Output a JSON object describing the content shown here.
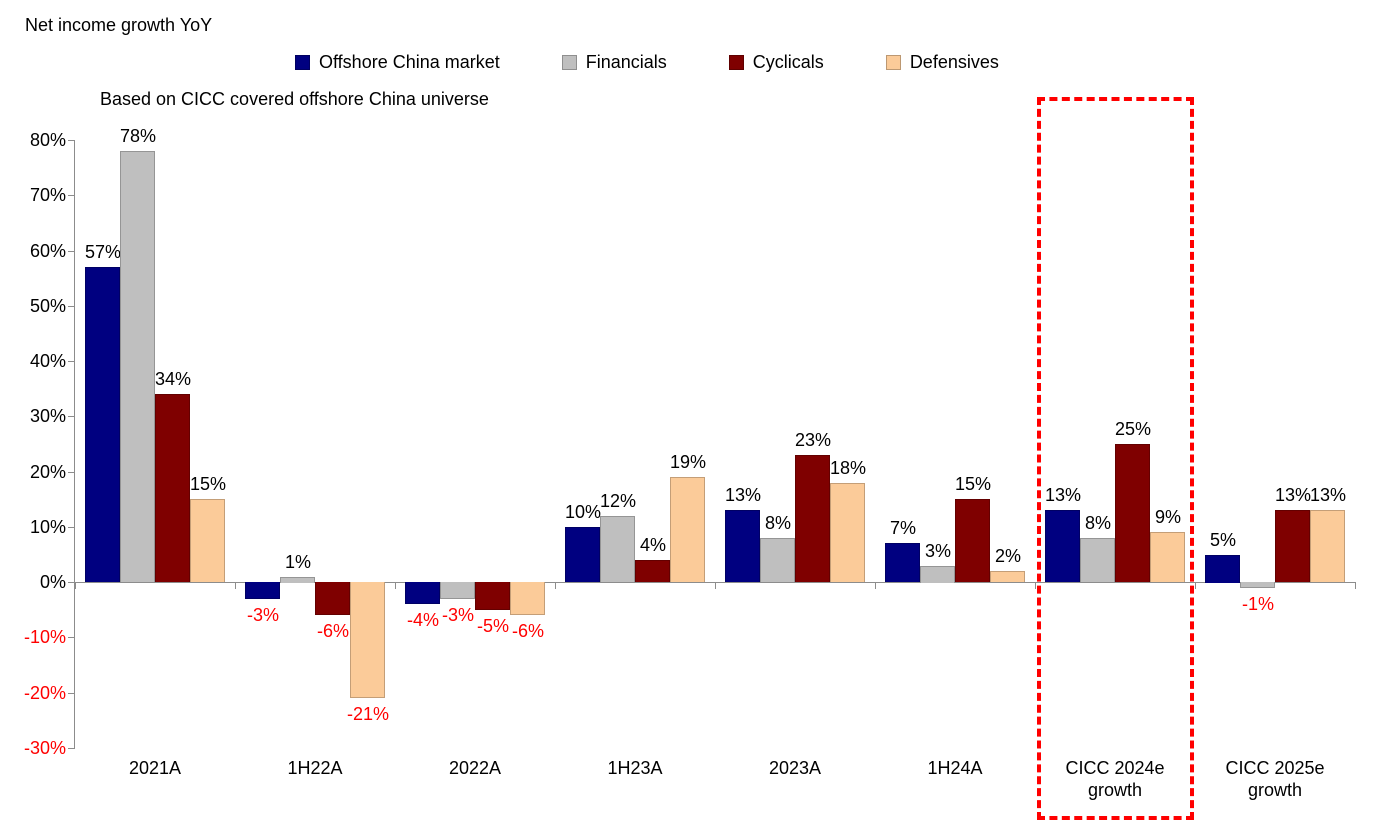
{
  "title": "Net income growth YoY",
  "subtitle": "Based on CICC covered offshore China universe",
  "chart_data": {
    "type": "bar",
    "title": "Net income growth YoY",
    "subtitle": "Based on CICC covered offshore China universe",
    "categories": [
      "2021A",
      "1H22A",
      "2022A",
      "1H23A",
      "2023A",
      "1H24A",
      "CICC 2024e growth",
      "CICC 2025e growth"
    ],
    "series": [
      {
        "name": "Offshore China market",
        "color": "#000080",
        "values": [
          57,
          -3,
          -4,
          10,
          13,
          7,
          13,
          5
        ]
      },
      {
        "name": "Financials",
        "color": "#BFBFBF",
        "values": [
          78,
          1,
          -3,
          12,
          8,
          3,
          8,
          -1
        ]
      },
      {
        "name": "Cyclicals",
        "color": "#7F0000",
        "values": [
          34,
          -6,
          -5,
          4,
          23,
          15,
          25,
          13
        ]
      },
      {
        "name": "Defensives",
        "color": "#FBCB99",
        "values": [
          15,
          -21,
          -6,
          19,
          18,
          2,
          9,
          13
        ]
      }
    ],
    "value_label_format": "{v}%",
    "ylim": [
      -30,
      80
    ],
    "y_tick_step": 10,
    "y_ticks": [
      "80%",
      "70%",
      "60%",
      "50%",
      "40%",
      "30%",
      "20%",
      "10%",
      "0%",
      "-10%",
      "-20%",
      "-30%"
    ],
    "grid": false,
    "legend_position": "top",
    "colors": {
      "positive_label": "#000000",
      "negative_label": "#FF0000",
      "negative_axis_label": "#FF0000",
      "axis": "#8c8c8c",
      "highlight": "#FF0000"
    },
    "highlight": {
      "category": "CICC 2024e growth",
      "category_index": 6,
      "style": "red-dashed-box"
    }
  }
}
